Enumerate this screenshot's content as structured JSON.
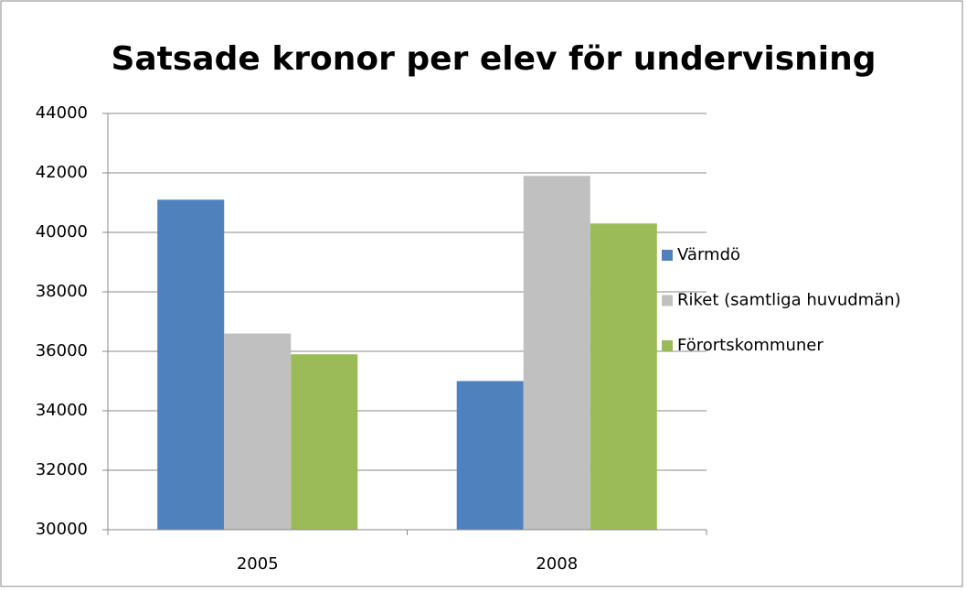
{
  "chart_data": {
    "type": "bar",
    "title": "Satsade kronor per elev för undervisning",
    "categories": [
      "2005",
      "2008"
    ],
    "series": [
      {
        "name": "Värmdö",
        "color": "#4f81bd",
        "values": [
          41100,
          35000
        ]
      },
      {
        "name": "Riket (samtliga huvudmän)",
        "color": "#c0c0c0",
        "values": [
          36600,
          41900
        ]
      },
      {
        "name": "Förortskommuner",
        "color": "#9bbb59",
        "values": [
          35900,
          40300
        ]
      }
    ],
    "ylim": [
      30000,
      44000
    ],
    "yticks": [
      30000,
      32000,
      34000,
      36000,
      38000,
      40000,
      42000,
      44000
    ],
    "grid": true,
    "legend": "right"
  }
}
